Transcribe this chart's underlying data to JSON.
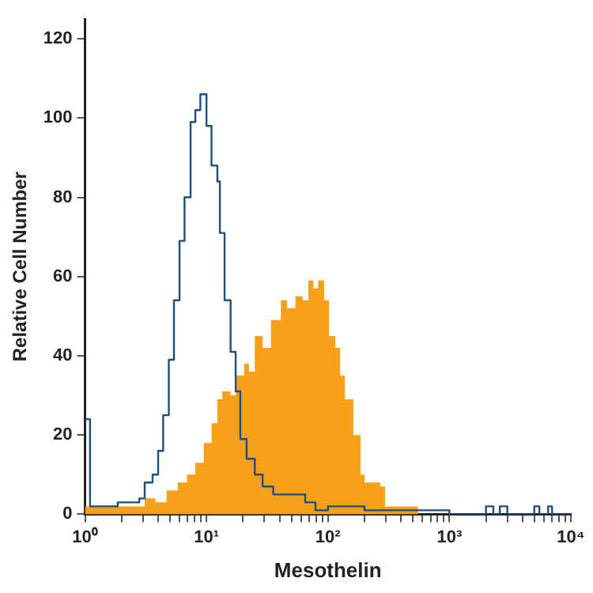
{
  "chart_data": {
    "type": "step",
    "xlabel": "Mesothelin",
    "ylabel": "Relative Cell Number",
    "log": "x",
    "grid": false,
    "legend": false,
    "xlim": [
      1,
      10000
    ],
    "ylim": [
      0,
      125
    ],
    "xticks": [
      {
        "value": 1,
        "label": "10⁰"
      },
      {
        "value": 2,
        "label": null
      },
      {
        "value": 3,
        "label": null
      },
      {
        "value": 4,
        "label": null
      },
      {
        "value": 5,
        "label": null
      },
      {
        "value": 6,
        "label": null
      },
      {
        "value": 7,
        "label": null
      },
      {
        "value": 8,
        "label": null
      },
      {
        "value": 9,
        "label": null
      },
      {
        "value": 10,
        "label": "10¹"
      },
      {
        "value": 20,
        "label": null
      },
      {
        "value": 30,
        "label": null
      },
      {
        "value": 40,
        "label": null
      },
      {
        "value": 50,
        "label": null
      },
      {
        "value": 60,
        "label": null
      },
      {
        "value": 70,
        "label": null
      },
      {
        "value": 80,
        "label": null
      },
      {
        "value": 90,
        "label": null
      },
      {
        "value": 100,
        "label": "10²"
      },
      {
        "value": 200,
        "label": null
      },
      {
        "value": 300,
        "label": null
      },
      {
        "value": 400,
        "label": null
      },
      {
        "value": 500,
        "label": null
      },
      {
        "value": 600,
        "label": null
      },
      {
        "value": 700,
        "label": null
      },
      {
        "value": 800,
        "label": null
      },
      {
        "value": 900,
        "label": null
      },
      {
        "value": 1000,
        "label": "10³"
      },
      {
        "value": 2000,
        "label": null
      },
      {
        "value": 3000,
        "label": null
      },
      {
        "value": 4000,
        "label": null
      },
      {
        "value": 5000,
        "label": null
      },
      {
        "value": 6000,
        "label": null
      },
      {
        "value": 7000,
        "label": null
      },
      {
        "value": 8000,
        "label": null
      },
      {
        "value": 9000,
        "label": null
      },
      {
        "value": 10000,
        "label": "10⁴"
      }
    ],
    "yticks": [
      0,
      20,
      40,
      60,
      80,
      100,
      120
    ],
    "series": [
      {
        "type": "area",
        "color": "#f7a11a",
        "x": [
          1,
          3.1,
          3.8,
          4.7,
          5.8,
          6.9,
          8.1,
          9.5,
          11,
          12.3,
          13.5,
          15.8,
          17.4,
          20.4,
          22.4,
          25,
          29,
          34,
          41,
          46,
          54,
          62,
          69,
          76,
          83,
          93,
          102,
          115,
          126,
          138,
          162,
          186,
          200,
          270,
          295,
          400,
          550,
          10000
        ],
        "values": [
          2,
          4,
          3,
          6,
          8,
          10,
          13,
          18,
          23,
          29,
          31,
          30,
          35,
          38,
          36,
          45,
          42,
          49,
          54,
          52,
          55,
          54,
          59,
          57,
          59,
          54,
          45,
          42,
          35,
          29,
          20,
          10,
          8,
          7,
          2,
          2,
          0,
          0
        ]
      },
      {
        "type": "step",
        "color": "#1d4f7c",
        "x": [
          1,
          1.1,
          1.86,
          2.8,
          3.1,
          3.6,
          4.0,
          4.4,
          4.9,
          5.4,
          6.0,
          6.6,
          7.4,
          8.1,
          8.9,
          10,
          11,
          12.3,
          12.9,
          14.1,
          15.8,
          17.4,
          19,
          21.4,
          25,
          29,
          35.5,
          48,
          65,
          79,
          100,
          200,
          1000,
          2000,
          2300,
          2600,
          3000,
          5000,
          5500,
          6500,
          7000,
          10000
        ],
        "values": [
          24,
          2,
          3,
          4,
          8,
          10,
          16,
          25,
          39,
          54,
          69,
          80,
          99,
          102,
          106,
          98,
          88,
          84,
          71,
          54,
          41,
          31,
          19,
          14,
          10,
          7,
          5,
          5,
          3,
          1,
          2,
          1,
          0,
          2,
          0,
          2,
          0,
          2,
          0,
          2,
          0,
          0
        ]
      }
    ]
  }
}
